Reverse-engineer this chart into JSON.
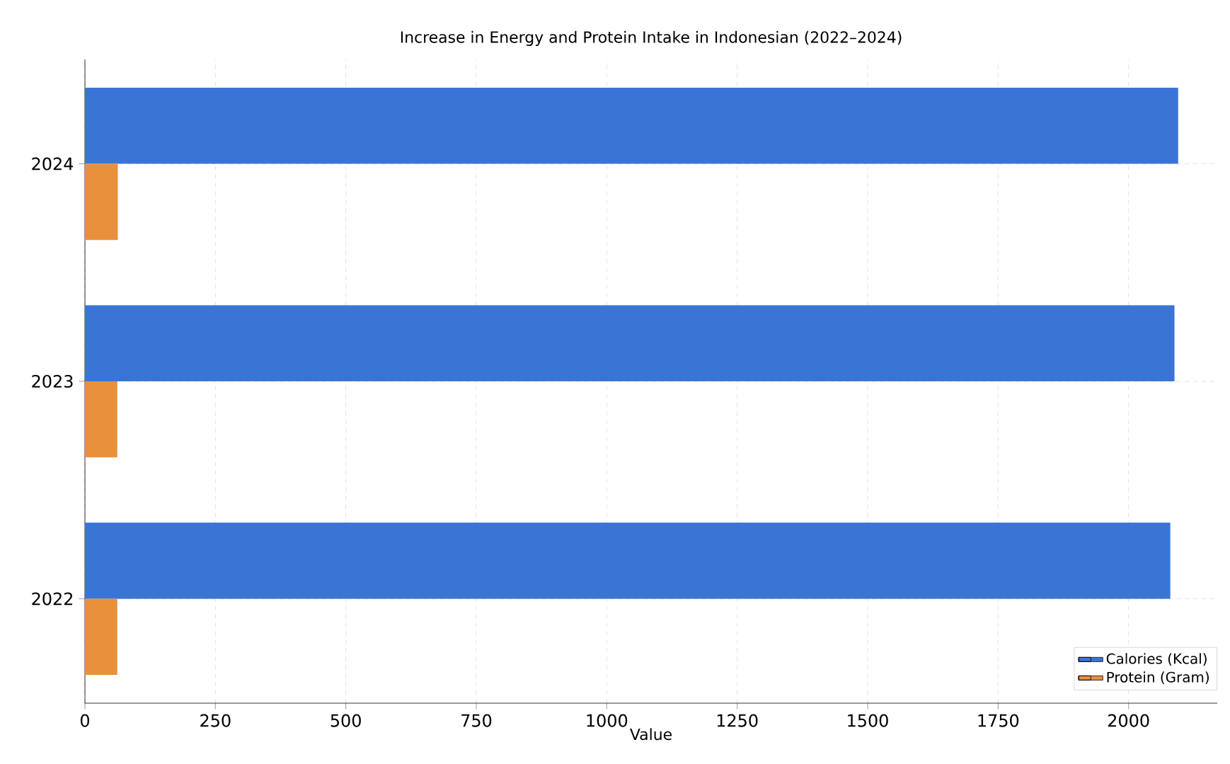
{
  "chart_data": {
    "type": "bar",
    "orientation": "horizontal",
    "title": "Increase in Energy and Protein Intake in Indonesian (2022–2024)",
    "xlabel": "Value",
    "categories": [
      "2024",
      "2023",
      "2022"
    ],
    "series": [
      {
        "name": "Calories (Kcal)",
        "color": "#3a75d6",
        "values": [
          2095,
          2088,
          2080
        ]
      },
      {
        "name": "Protein (Gram)",
        "color": "#e8903a",
        "values": [
          63,
          62,
          62
        ]
      }
    ],
    "xlim": [
      0,
      2170
    ],
    "xticks": [
      0,
      250,
      500,
      750,
      1000,
      1250,
      1500,
      1750,
      2000
    ],
    "grid": true,
    "legend": "bottom right"
  }
}
